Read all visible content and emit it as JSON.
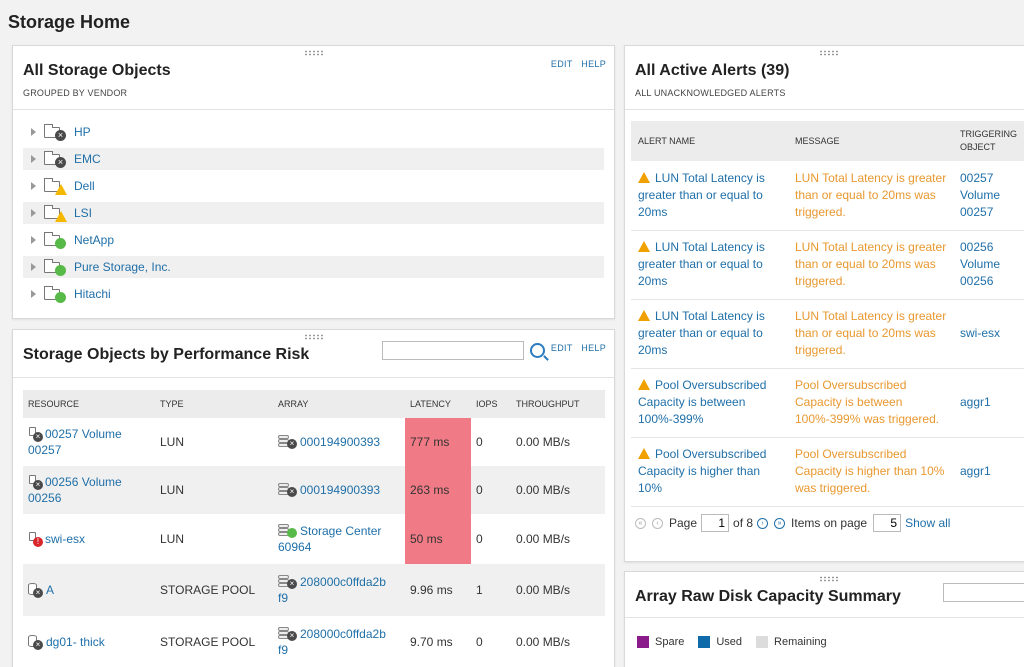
{
  "page": {
    "title": "Storage Home"
  },
  "storage_objects": {
    "title": "All Storage Objects",
    "subtitle": "GROUPED BY VENDOR",
    "edit_label": "EDIT",
    "help_label": "HELP",
    "vendors": [
      {
        "name": "HP",
        "status": "critical"
      },
      {
        "name": "EMC",
        "status": "critical"
      },
      {
        "name": "Dell",
        "status": "warning"
      },
      {
        "name": "LSI",
        "status": "warning"
      },
      {
        "name": "NetApp",
        "status": "up"
      },
      {
        "name": "Pure Storage, Inc.",
        "status": "up"
      },
      {
        "name": "Hitachi",
        "status": "up"
      }
    ]
  },
  "perf_risk": {
    "title": "Storage Objects by Performance Risk",
    "search_placeholder": "",
    "edit_label": "EDIT",
    "help_label": "HELP",
    "columns": [
      "RESOURCE",
      "TYPE",
      "ARRAY",
      "LATENCY",
      "IOPS",
      "THROUGHPUT"
    ],
    "rows": [
      {
        "resource": [
          "00257 Volume",
          "00257"
        ],
        "type": "LUN",
        "array": [
          "000194900393"
        ],
        "latency": "777 ms",
        "iops": "0",
        "throughput": "0.00 MB/s"
      },
      {
        "resource": [
          "00256 Volume",
          "00256"
        ],
        "type": "LUN",
        "array": [
          "000194900393"
        ],
        "latency": "263 ms",
        "iops": "0",
        "throughput": "0.00 MB/s"
      },
      {
        "resource": [
          "swi-esx"
        ],
        "type": "LUN",
        "array": [
          "Storage Center",
          "60964"
        ],
        "latency": "50 ms",
        "iops": "0",
        "throughput": "0.00 MB/s"
      },
      {
        "resource": [
          "A"
        ],
        "type": "STORAGE POOL",
        "array": [
          "208000c0ffda2b",
          "f9"
        ],
        "latency": "9.96 ms",
        "iops": "1",
        "throughput": "0.00 MB/s"
      },
      {
        "resource": [
          "dg01- thick"
        ],
        "type": "STORAGE POOL",
        "array": [
          "208000c0ffda2b",
          "f9"
        ],
        "latency": "9.70 ms",
        "iops": "0",
        "throughput": "0.00 MB/s"
      }
    ]
  },
  "alerts": {
    "title": "All Active Alerts (39)",
    "subtitle": "ALL UNACKNOWLEDGED ALERTS",
    "columns": [
      "ALERT NAME",
      "MESSAGE",
      "TRIGGERING OBJECT"
    ],
    "rows": [
      {
        "name": "LUN Total Latency is greater than or equal to 20ms",
        "message": "LUN Total Latency is greater than or equal to 20ms was triggered.",
        "object": "00257 Volume 00257"
      },
      {
        "name": "LUN Total Latency is greater than or equal to 20ms",
        "message": "LUN Total Latency is greater than or equal to 20ms was triggered.",
        "object": "00256 Volume 00256"
      },
      {
        "name": "LUN Total Latency is greater than or equal to 20ms",
        "message": "LUN Total Latency is greater than or equal to 20ms was triggered.",
        "object": "swi-esx"
      },
      {
        "name": "Pool Oversubscribed Capacity is between 100%-399%",
        "message": "Pool Oversubscribed Capacity is between 100%-399% was triggered.",
        "object": "aggr1"
      },
      {
        "name": "Pool Oversubscribed Capacity is higher than 10%",
        "message": "Pool Oversubscribed Capacity is higher than 10% was triggered.",
        "object": "aggr1"
      }
    ],
    "pager": {
      "page_label": "Page",
      "page": "1",
      "of_label": "of 8",
      "items_label": "Items on page",
      "items": "5",
      "show_all": "Show all"
    }
  },
  "capacity": {
    "title": "Array Raw Disk Capacity Summary",
    "legend": [
      {
        "label": "Spare",
        "color": "#8b1a8b"
      },
      {
        "label": "Used",
        "color": "#0e6aa8"
      },
      {
        "label": "Remaining",
        "color": "#dcdcdc"
      }
    ]
  }
}
